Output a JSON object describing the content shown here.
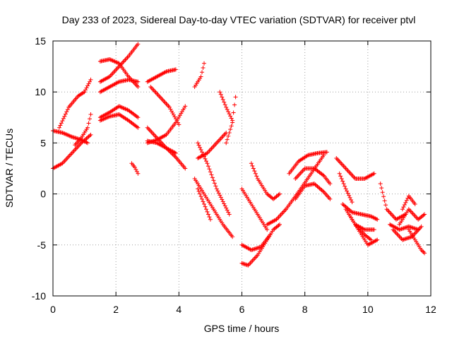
{
  "chart_data": {
    "type": "scatter",
    "title": "Day 233 of 2023, Sidereal Day-to-day VTEC variation (SDTVAR) for receiver ptvl",
    "xlabel": "GPS time / hours",
    "ylabel": "SDTVAR / TECUs",
    "xlim": [
      0,
      12
    ],
    "ylim": [
      -10,
      15
    ],
    "xticks": [
      0,
      2,
      4,
      6,
      8,
      10,
      12
    ],
    "yticks": [
      -10,
      -5,
      0,
      5,
      10,
      15
    ],
    "xtick_labels": [
      "0",
      "2",
      "4",
      "6",
      "8",
      "10",
      "12"
    ],
    "ytick_labels": [
      "-10",
      "-5",
      "0",
      "5",
      "10",
      "15"
    ],
    "grid": true,
    "legend": "none",
    "marker": "+",
    "color": "#ff0000",
    "series": [
      {
        "x": [
          0.0,
          0.3,
          0.6,
          0.9,
          1.2
        ],
        "y": [
          2.5,
          3.0,
          4.0,
          5.0,
          5.8
        ]
      },
      {
        "x": [
          0.0,
          0.3,
          0.6,
          0.9,
          1.1
        ],
        "y": [
          6.2,
          6.0,
          5.6,
          5.3,
          5.0
        ]
      },
      {
        "x": [
          0.2,
          0.5,
          0.8,
          1.0,
          1.2
        ],
        "y": [
          6.5,
          8.5,
          9.6,
          10.0,
          11.2
        ]
      },
      {
        "x": [
          0.7,
          0.9,
          1.1,
          1.2
        ],
        "y": [
          4.8,
          5.5,
          6.5,
          7.8
        ]
      },
      {
        "x": [
          1.5,
          1.8,
          2.1,
          2.4,
          2.7
        ],
        "y": [
          7.2,
          7.6,
          7.8,
          7.2,
          6.5
        ]
      },
      {
        "x": [
          1.5,
          1.8,
          2.1,
          2.4,
          2.7
        ],
        "y": [
          7.5,
          8.0,
          8.6,
          8.2,
          7.5
        ]
      },
      {
        "x": [
          1.5,
          1.8,
          2.1,
          2.4,
          2.7
        ],
        "y": [
          13.0,
          13.2,
          12.8,
          11.5,
          10.5
        ]
      },
      {
        "x": [
          1.5,
          1.8,
          2.1,
          2.4,
          2.7
        ],
        "y": [
          11.0,
          11.5,
          12.5,
          13.5,
          14.7
        ]
      },
      {
        "x": [
          1.5,
          1.8,
          2.1,
          2.4,
          2.7
        ],
        "y": [
          10.0,
          10.5,
          11.0,
          11.2,
          11.0
        ]
      },
      {
        "x": [
          2.5,
          2.6,
          2.7
        ],
        "y": [
          3.0,
          2.6,
          2.0
        ]
      },
      {
        "x": [
          3.0,
          3.3,
          3.6,
          3.9
        ],
        "y": [
          11.0,
          11.5,
          12.0,
          12.2
        ]
      },
      {
        "x": [
          3.0,
          3.3,
          3.6,
          3.9,
          4.2
        ],
        "y": [
          5.0,
          5.3,
          5.8,
          7.0,
          8.6
        ]
      },
      {
        "x": [
          3.0,
          3.3,
          3.6,
          3.9,
          4.2
        ],
        "y": [
          6.5,
          5.5,
          4.5,
          3.6,
          2.5
        ]
      },
      {
        "x": [
          3.0,
          3.3,
          3.6,
          3.9
        ],
        "y": [
          5.2,
          5.0,
          4.5,
          4.0
        ]
      },
      {
        "x": [
          3.1,
          3.4,
          3.7,
          4.0
        ],
        "y": [
          10.5,
          9.5,
          8.5,
          6.8
        ]
      },
      {
        "x": [
          4.5,
          4.7,
          4.8
        ],
        "y": [
          10.5,
          11.5,
          12.8
        ]
      },
      {
        "x": [
          4.6,
          4.9,
          5.2,
          5.5
        ],
        "y": [
          3.5,
          4.0,
          5.0,
          6.0
        ]
      },
      {
        "x": [
          4.6,
          4.9,
          5.2,
          5.6
        ],
        "y": [
          5.0,
          3.0,
          0.5,
          -2.0
        ]
      },
      {
        "x": [
          4.5,
          4.8,
          5.1,
          5.4,
          5.7
        ],
        "y": [
          1.5,
          0.0,
          -1.5,
          -3.0,
          -4.2
        ]
      },
      {
        "x": [
          4.6,
          4.8,
          5.0
        ],
        "y": [
          0.5,
          -1.0,
          -2.5
        ]
      },
      {
        "x": [
          5.3,
          5.5,
          5.7,
          5.8
        ],
        "y": [
          10.0,
          8.5,
          7.2,
          9.5
        ]
      },
      {
        "x": [
          5.5,
          5.6,
          5.7
        ],
        "y": [
          5.0,
          6.0,
          7.0
        ]
      },
      {
        "x": [
          6.0,
          6.3,
          6.6,
          6.9
        ],
        "y": [
          -5.0,
          -5.5,
          -5.2,
          -4.0
        ]
      },
      {
        "x": [
          6.0,
          6.2,
          6.5,
          6.8,
          7.0,
          7.2
        ],
        "y": [
          -6.8,
          -7.0,
          -6.0,
          -4.5,
          -3.5,
          -3.0
        ]
      },
      {
        "x": [
          6.0,
          6.3,
          6.6,
          6.8
        ],
        "y": [
          0.5,
          -1.0,
          -2.5,
          -3.5
        ]
      },
      {
        "x": [
          6.3,
          6.5,
          6.8,
          7.0,
          7.2
        ],
        "y": [
          3.0,
          1.5,
          0.0,
          -0.5,
          0.0
        ]
      },
      {
        "x": [
          6.8,
          7.1,
          7.4,
          7.8,
          8.2,
          8.6
        ],
        "y": [
          -3.0,
          -2.5,
          -1.5,
          0.2,
          2.0,
          3.8
        ]
      },
      {
        "x": [
          7.5,
          7.8,
          8.1,
          8.4,
          8.7
        ],
        "y": [
          2.0,
          3.2,
          3.8,
          4.0,
          4.1
        ]
      },
      {
        "x": [
          7.7,
          8.0,
          8.3,
          8.6,
          8.8
        ],
        "y": [
          1.5,
          2.5,
          2.5,
          1.8,
          1.0
        ]
      },
      {
        "x": [
          7.7,
          8.0,
          8.3,
          8.6,
          8.8
        ],
        "y": [
          -0.5,
          0.8,
          1.0,
          0.2,
          -0.5
        ]
      },
      {
        "x": [
          9.0,
          9.3,
          9.6,
          9.9,
          10.2
        ],
        "y": [
          3.5,
          2.5,
          1.5,
          1.5,
          2.0
        ]
      },
      {
        "x": [
          9.1,
          9.3,
          9.5
        ],
        "y": [
          2.0,
          0.5,
          -0.8
        ]
      },
      {
        "x": [
          9.2,
          9.5,
          9.8,
          10.1,
          10.3
        ],
        "y": [
          -1.0,
          -1.8,
          -2.0,
          -2.2,
          -2.5
        ]
      },
      {
        "x": [
          9.3,
          9.6,
          9.9,
          10.1
        ],
        "y": [
          -1.5,
          -3.0,
          -4.0,
          -4.5
        ]
      },
      {
        "x": [
          9.4,
          9.7,
          10.0,
          10.3
        ],
        "y": [
          -2.0,
          -3.5,
          -5.0,
          -4.5
        ]
      },
      {
        "x": [
          9.6,
          9.9,
          10.2
        ],
        "y": [
          -3.0,
          -3.5,
          -3.5
        ]
      },
      {
        "x": [
          10.4,
          10.6,
          10.9,
          11.2
        ],
        "y": [
          1.0,
          -1.5,
          -2.5,
          -2.0
        ]
      },
      {
        "x": [
          10.7,
          11.0,
          11.3,
          11.6
        ],
        "y": [
          -3.0,
          -3.5,
          -3.2,
          -3.5
        ]
      },
      {
        "x": [
          10.8,
          11.1,
          11.4,
          11.7
        ],
        "y": [
          -3.5,
          -4.5,
          -4.2,
          -3.2
        ]
      },
      {
        "x": [
          11.0,
          11.3,
          11.6,
          11.8
        ],
        "y": [
          -3.0,
          -1.5,
          -2.5,
          -2.0
        ]
      },
      {
        "x": [
          11.1,
          11.3,
          11.5
        ],
        "y": [
          -1.5,
          -0.2,
          -1.0
        ]
      },
      {
        "x": [
          11.3,
          11.5,
          11.7,
          11.8
        ],
        "y": [
          -3.5,
          -4.5,
          -5.5,
          -5.8
        ]
      }
    ]
  }
}
